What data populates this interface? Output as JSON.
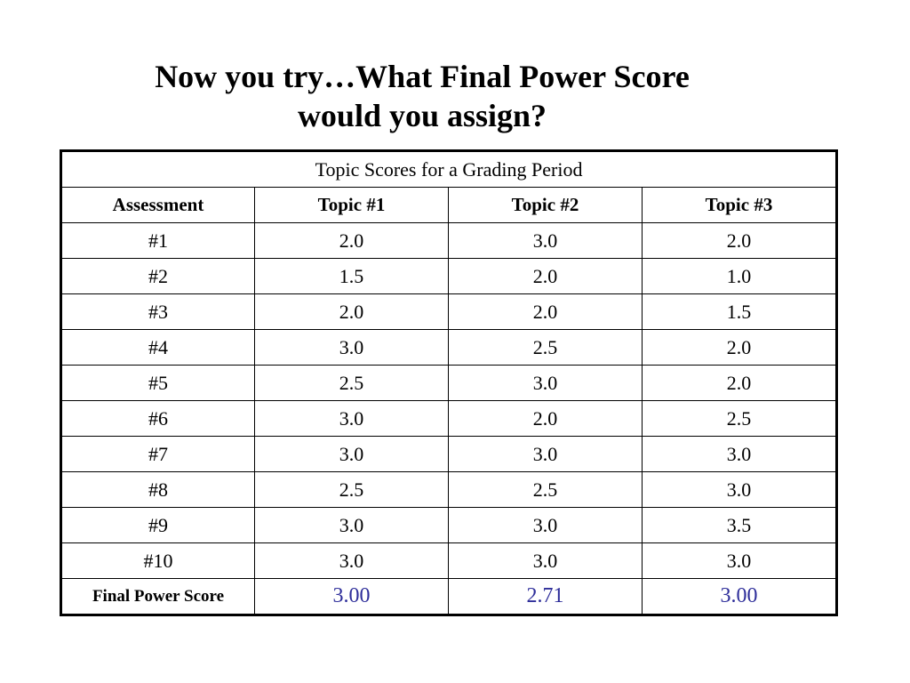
{
  "title": {
    "line1": "Now you try…What Final Power Score",
    "line2": "would you assign?"
  },
  "table": {
    "caption": "Topic Scores for a Grading Period",
    "headers": [
      "Assessment",
      "Topic #1",
      "Topic #2",
      "Topic #3"
    ],
    "rows": [
      [
        "#1",
        "2.0",
        "3.0",
        "2.0"
      ],
      [
        "#2",
        "1.5",
        "2.0",
        "1.0"
      ],
      [
        "#3",
        "2.0",
        "2.0",
        "1.5"
      ],
      [
        "#4",
        "3.0",
        "2.5",
        "2.0"
      ],
      [
        "#5",
        "2.5",
        "3.0",
        "2.0"
      ],
      [
        "#6",
        "3.0",
        "2.0",
        "2.5"
      ],
      [
        "#7",
        "3.0",
        "3.0",
        "3.0"
      ],
      [
        "#8",
        "2.5",
        "2.5",
        "3.0"
      ],
      [
        "#9",
        "3.0",
        "3.0",
        "3.5"
      ],
      [
        "#10",
        "3.0",
        "3.0",
        "3.0"
      ]
    ],
    "final": {
      "label": "Final Power Score",
      "values": [
        "3.00",
        "2.71",
        "3.00"
      ],
      "value_color": "#2e2e9a"
    }
  }
}
